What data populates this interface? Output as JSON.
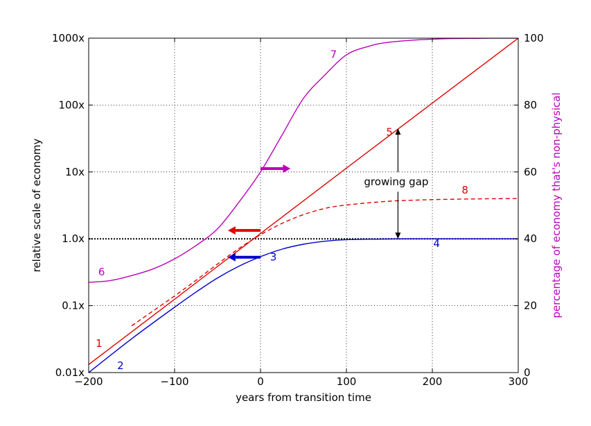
{
  "chart_data": {
    "type": "line",
    "xlabel": "years from transition time",
    "ylabel_left": "relative scale of economy",
    "ylabel_right": "percentage of economy that's non-physical",
    "xlim": [
      -200,
      300
    ],
    "ylim_left": [
      0.01,
      1000
    ],
    "ylim_right": [
      0,
      100
    ],
    "yscale_left": "log",
    "grid": true,
    "xticks": [
      -200,
      -100,
      0,
      100,
      200,
      300
    ],
    "xtick_labels": [
      "−200",
      "−100",
      "0",
      "100",
      "200",
      "300"
    ],
    "yticks_left": [
      0.01,
      0.1,
      1,
      10,
      100,
      1000
    ],
    "ytick_labels_left": [
      "0.01x",
      "0.1x",
      "1.0x",
      "10x",
      "100x",
      "1000x"
    ],
    "yticks_right": [
      0,
      20,
      40,
      60,
      80,
      100
    ],
    "ytick_labels_right": [
      "0",
      "20",
      "40",
      "60",
      "80",
      "100"
    ],
    "reference_line": {
      "axis": "left",
      "y": 1
    },
    "series": [
      {
        "color": "#e00000",
        "dash": false,
        "axis": "left",
        "x": [
          -200,
          -100,
          0,
          100,
          200,
          300
        ],
        "y": [
          0.0132,
          0.125,
          1.2,
          11.4,
          107,
          1000
        ]
      },
      {
        "color": "#e00000",
        "dash": true,
        "axis": "left",
        "x": [
          -150,
          -100,
          -75,
          -50,
          -25,
          0,
          25,
          50,
          75,
          100,
          150,
          200,
          250,
          300
        ],
        "y": [
          0.05,
          0.14,
          0.24,
          0.42,
          0.72,
          1.15,
          1.7,
          2.3,
          2.85,
          3.2,
          3.65,
          3.85,
          3.95,
          4.0
        ]
      },
      {
        "color": "#0000cc",
        "dash": false,
        "axis": "left",
        "x": [
          -200,
          -150,
          -100,
          -75,
          -50,
          -25,
          0,
          25,
          50,
          75,
          100,
          150,
          200,
          250,
          300
        ],
        "y": [
          0.01,
          0.032,
          0.095,
          0.16,
          0.26,
          0.39,
          0.54,
          0.7,
          0.83,
          0.92,
          0.97,
          0.995,
          1.0,
          1.0,
          1.0
        ]
      },
      {
        "color": "#bb00bb",
        "dash": false,
        "axis": "right",
        "x": [
          -200,
          -175,
          -150,
          -125,
          -100,
          -75,
          -50,
          -25,
          0,
          25,
          50,
          75,
          100,
          125,
          150,
          200,
          250,
          300
        ],
        "y": [
          27,
          27.5,
          29,
          31,
          34,
          38,
          43,
          51,
          60,
          71,
          82,
          89,
          95,
          97.5,
          98.8,
          99.7,
          99.95,
          100
        ]
      }
    ],
    "annotations": [
      {
        "text": "1",
        "x": -188,
        "y": 0.027,
        "axis": "left",
        "color": "#e00000"
      },
      {
        "text": "2",
        "x": -163,
        "y": 0.0126,
        "axis": "left",
        "color": "#0000cc"
      },
      {
        "text": "3",
        "x": 15,
        "y": 0.53,
        "axis": "left",
        "color": "#0000cc"
      },
      {
        "text": "4",
        "x": 205,
        "y": 0.84,
        "axis": "left",
        "color": "#0000cc"
      },
      {
        "text": "5",
        "x": 150,
        "y": 39,
        "axis": "left",
        "color": "#e00000"
      },
      {
        "text": "6",
        "x": -185,
        "y": 30,
        "axis": "right",
        "color": "#bb00bb"
      },
      {
        "text": "7",
        "x": 85,
        "y": 95,
        "axis": "right",
        "color": "#bb00bb"
      },
      {
        "text": "8",
        "x": 238,
        "y": 54.5,
        "axis": "right",
        "color": "#e00000"
      },
      {
        "text": "growing gap",
        "x": 158,
        "y": 57,
        "axis": "right",
        "color": "#000000"
      }
    ],
    "arrows": [
      {
        "direction": "right",
        "x_from": 0,
        "x_to": 35,
        "y": 61,
        "axis": "right",
        "color": "#bb00bb"
      },
      {
        "direction": "left",
        "x_from": 0,
        "x_to": -38,
        "y": 42.5,
        "axis": "right",
        "color": "#e00000"
      },
      {
        "direction": "left",
        "x_from": 0,
        "x_to": -38,
        "y": 34.5,
        "axis": "right",
        "color": "#0000cc"
      }
    ],
    "gap_arrow": {
      "x": 160,
      "axis": "right",
      "top": 73,
      "bottom": 40,
      "label_y": 57
    }
  }
}
